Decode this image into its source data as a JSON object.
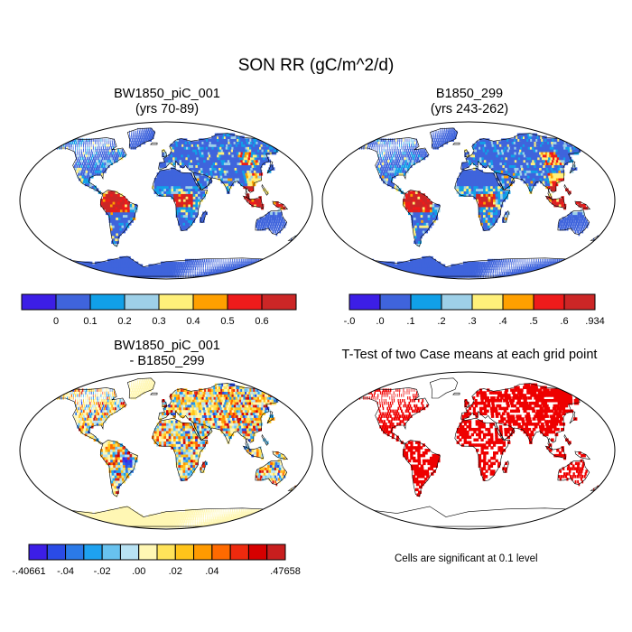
{
  "title": "SON RR (gC/m^2/d)",
  "panels": [
    {
      "title_line1": "BW1850_piC_001",
      "title_line2": "(yrs 70-89)"
    },
    {
      "title_line1": "B1850_299",
      "title_line2": "(yrs 243-262)"
    },
    {
      "title_line1": "BW1850_piC_001",
      "title_line2": "- B1850_299"
    },
    {
      "title_line1": "T-Test of two Case means at each grid point",
      "title_line2": ""
    }
  ],
  "colorbars": {
    "case1": {
      "colors": [
        "#3c1ee6",
        "#3f64dc",
        "#11a0e8",
        "#9ed0e8",
        "#fff07a",
        "#ffa000",
        "#ee1b1b",
        "#cc2626"
      ],
      "labels": [
        "0",
        "0.1",
        "0.2",
        "0.3",
        "0.4",
        "0.5",
        "0.6"
      ]
    },
    "case2": {
      "colors": [
        "#3c1ee6",
        "#3f64dc",
        "#11a0e8",
        "#9ed0e8",
        "#fff07a",
        "#ffa000",
        "#ee1b1b",
        "#cc2626"
      ],
      "labels": [
        "-.0",
        ".0",
        ".1",
        ".2",
        ".3",
        ".4",
        ".5",
        ".6",
        ".934"
      ]
    },
    "diff": {
      "colors": [
        "#3c1ee6",
        "#2a4be6",
        "#2b7ae8",
        "#1ea2f0",
        "#68c2ef",
        "#b8e2f3",
        "#fff7b4",
        "#ffe35a",
        "#ffc41a",
        "#ff9a00",
        "#ff6a00",
        "#ee2a0e",
        "#d60000",
        "#c81e1e"
      ],
      "labels": [
        "-.40661",
        "-.04",
        "-.02",
        ".00",
        ".02",
        ".04",
        ".47658"
      ]
    }
  },
  "note": "Cells are significant at 0.1 level"
}
